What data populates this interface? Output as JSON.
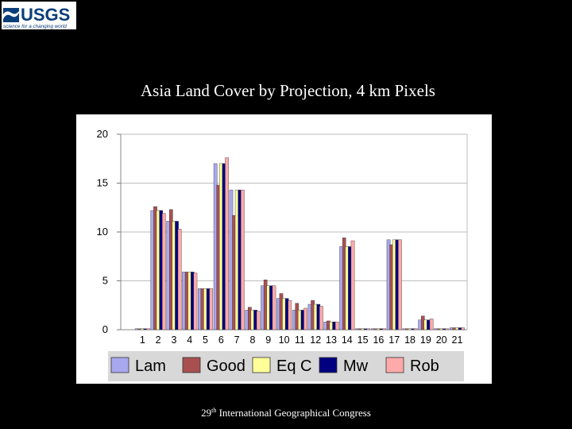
{
  "logo": {
    "text": "USGS",
    "tagline": "science for a changing world",
    "color": "#0b3d7a"
  },
  "title": "Asia Land Cover by Projection, 4 km Pixels",
  "footer": {
    "number": "29",
    "suffix": "th",
    "rest": " International Geographical Congress"
  },
  "chart_data": {
    "type": "bar",
    "title": "",
    "xlabel": "",
    "ylabel": "",
    "ylim": [
      0,
      20
    ],
    "yticks": [
      0,
      5,
      10,
      15,
      20
    ],
    "grid": true,
    "legend_position": "bottom",
    "categories": [
      "1",
      "2",
      "3",
      "4",
      "5",
      "6",
      "7",
      "8",
      "9",
      "10",
      "11",
      "12",
      "13",
      "14",
      "15",
      "16",
      "17",
      "18",
      "19",
      "20",
      "21"
    ],
    "series": [
      {
        "name": "Lam",
        "color": "#a8a8f0",
        "values": [
          0.1,
          12.2,
          11.1,
          5.9,
          4.2,
          17.0,
          14.3,
          2.0,
          4.5,
          3.2,
          2.0,
          2.6,
          0.8,
          8.5,
          0.1,
          0.1,
          9.2,
          0.1,
          1.0,
          0.05,
          0.2
        ]
      },
      {
        "name": "Good",
        "color": "#a85050",
        "values": [
          0.1,
          12.6,
          12.3,
          5.9,
          4.2,
          14.8,
          11.7,
          2.3,
          5.1,
          3.7,
          2.7,
          3.0,
          0.9,
          9.4,
          0.1,
          0.1,
          8.7,
          0.1,
          1.4,
          0.05,
          0.2
        ]
      },
      {
        "name": "Eq C",
        "color": "#ffff99",
        "values": [
          0.1,
          12.2,
          11.1,
          5.9,
          4.2,
          17.0,
          14.3,
          2.0,
          4.5,
          3.2,
          2.0,
          2.6,
          0.8,
          8.5,
          0.1,
          0.1,
          9.2,
          0.1,
          1.0,
          0.05,
          0.2
        ]
      },
      {
        "name": "Mw",
        "color": "#000080",
        "values": [
          0.1,
          12.2,
          11.1,
          5.9,
          4.2,
          17.0,
          14.3,
          2.0,
          4.5,
          3.2,
          2.0,
          2.6,
          0.8,
          8.5,
          0.1,
          0.1,
          9.2,
          0.1,
          1.0,
          0.05,
          0.2
        ]
      },
      {
        "name": "Rob",
        "color": "#ffaaaa",
        "values": [
          0.1,
          11.9,
          10.3,
          5.8,
          4.2,
          17.6,
          14.3,
          1.9,
          4.5,
          3.0,
          2.2,
          2.4,
          0.8,
          9.1,
          0.1,
          0.1,
          9.2,
          0.1,
          1.1,
          0.05,
          0.2
        ]
      }
    ]
  }
}
